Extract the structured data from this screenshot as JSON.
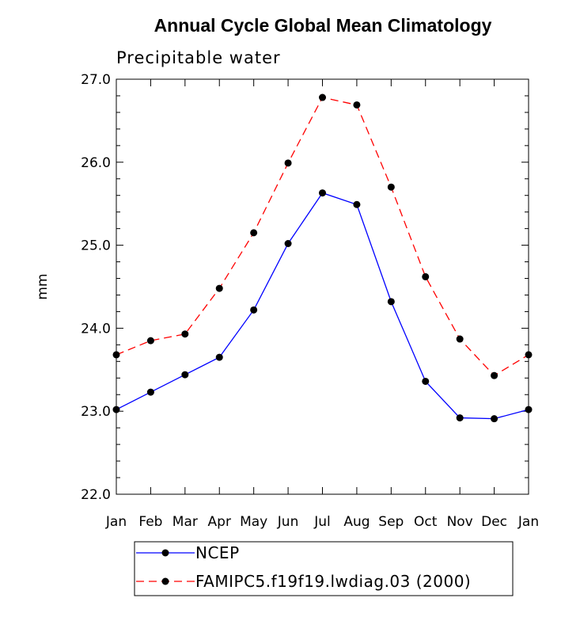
{
  "chart_data": {
    "type": "line",
    "title": "Annual Cycle Global Mean Climatology",
    "subtitle": "Precipitable water",
    "xlabel": "",
    "ylabel": "mm",
    "categories": [
      "Jan",
      "Feb",
      "Mar",
      "Apr",
      "May",
      "Jun",
      "Jul",
      "Aug",
      "Sep",
      "Oct",
      "Nov",
      "Dec",
      "Jan"
    ],
    "ylim": [
      22.0,
      27.0
    ],
    "yticks": [
      22.0,
      23.0,
      24.0,
      25.0,
      26.0,
      27.0
    ],
    "ytick_labels": [
      "22.0",
      "23.0",
      "24.0",
      "25.0",
      "26.0",
      "27.0"
    ],
    "grid": false,
    "legend_position": "bottom",
    "series": [
      {
        "name": "NCEP",
        "color": "#0000ff",
        "dash": "solid",
        "marker": "circle",
        "values": [
          23.02,
          23.23,
          23.44,
          23.65,
          24.22,
          25.02,
          25.63,
          25.49,
          24.32,
          23.36,
          22.92,
          22.91,
          23.02
        ]
      },
      {
        "name": "FAMIPC5.f19f19.lwdiag.03 (2000)",
        "color": "#ff0000",
        "dash": "dashed",
        "marker": "circle",
        "values": [
          23.68,
          23.85,
          23.93,
          24.48,
          25.15,
          25.99,
          26.78,
          26.69,
          25.7,
          24.62,
          23.87,
          23.43,
          23.68
        ]
      }
    ]
  }
}
